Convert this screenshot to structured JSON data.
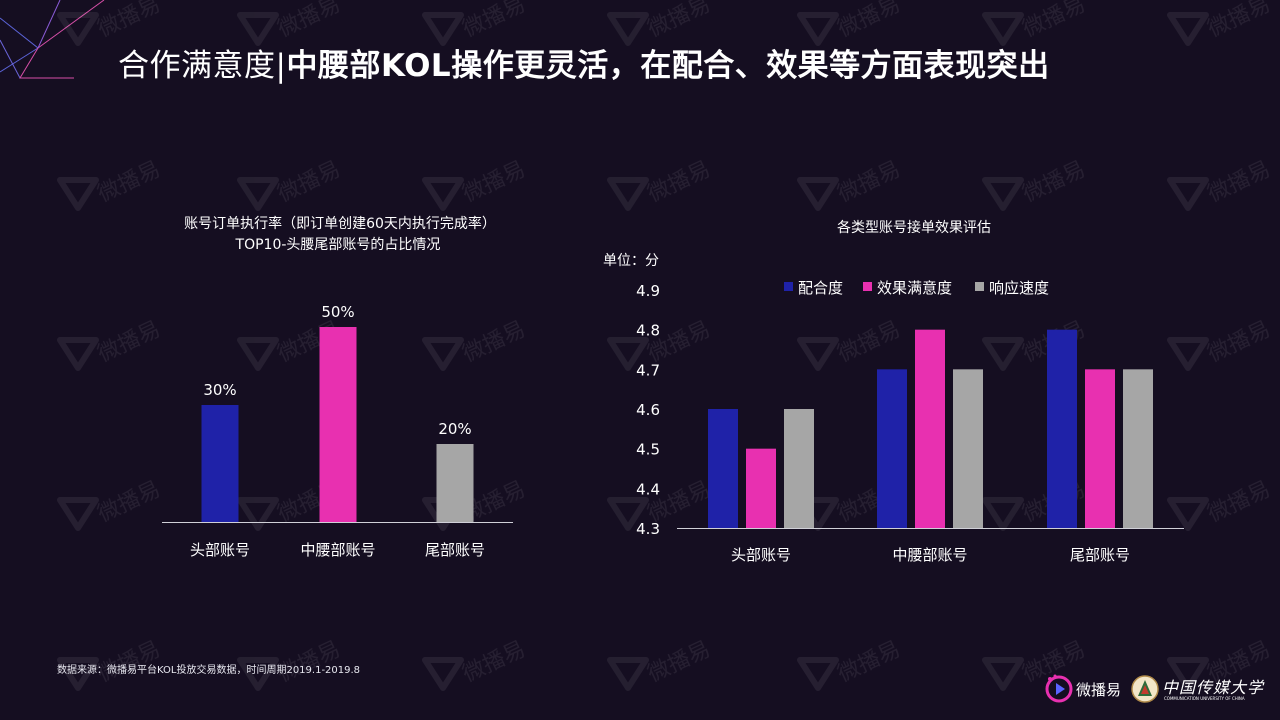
{
  "slide": {
    "title_lead": "合作满意度|",
    "title_rest": "中腰部KOL操作更灵活，在配合、效果等方面表现突出",
    "source_note": "数据来源：微播易平台KOL投放交易数据，时间周期2019.1-2019.8",
    "logo_weiboyi": "微播易",
    "logo_cuc": "中国传媒大学",
    "logo_cuc_sub": "COMMUNICATION UNIVERSITY OF CHINA",
    "watermark_text": "微播易",
    "background_color": "#150e21"
  },
  "chart_data": [
    {
      "type": "bar",
      "title": "账号订单执行率（即订单创建60天内执行完成率）",
      "subtitle": "TOP10-头腰尾部账号的占比情况",
      "categories": [
        "头部账号",
        "中腰部账号",
        "尾部账号"
      ],
      "values": [
        30,
        50,
        20
      ],
      "value_labels": [
        "30%",
        "50%",
        "20%"
      ],
      "colors": [
        "#1f22a8",
        "#e830b0",
        "#a6a6a6"
      ],
      "ylim": [
        0,
        50
      ],
      "grid": false
    },
    {
      "type": "bar",
      "title": "各类型账号接单效果评估",
      "unit_label": "单位：分",
      "categories": [
        "头部账号",
        "中腰部账号",
        "尾部账号"
      ],
      "series": [
        {
          "name": "配合度",
          "values": [
            4.6,
            4.7,
            4.8
          ],
          "color": "#1f22a8"
        },
        {
          "name": "效果满意度",
          "values": [
            4.5,
            4.8,
            4.7
          ],
          "color": "#e830b0"
        },
        {
          "name": "响应速度",
          "values": [
            4.6,
            4.7,
            4.7
          ],
          "color": "#a6a6a6"
        }
      ],
      "yticks": [
        "4.3",
        "4.4",
        "4.5",
        "4.6",
        "4.7",
        "4.8",
        "4.9"
      ],
      "ylim": [
        4.3,
        4.9
      ],
      "legend_position": "top",
      "grid": false
    }
  ]
}
